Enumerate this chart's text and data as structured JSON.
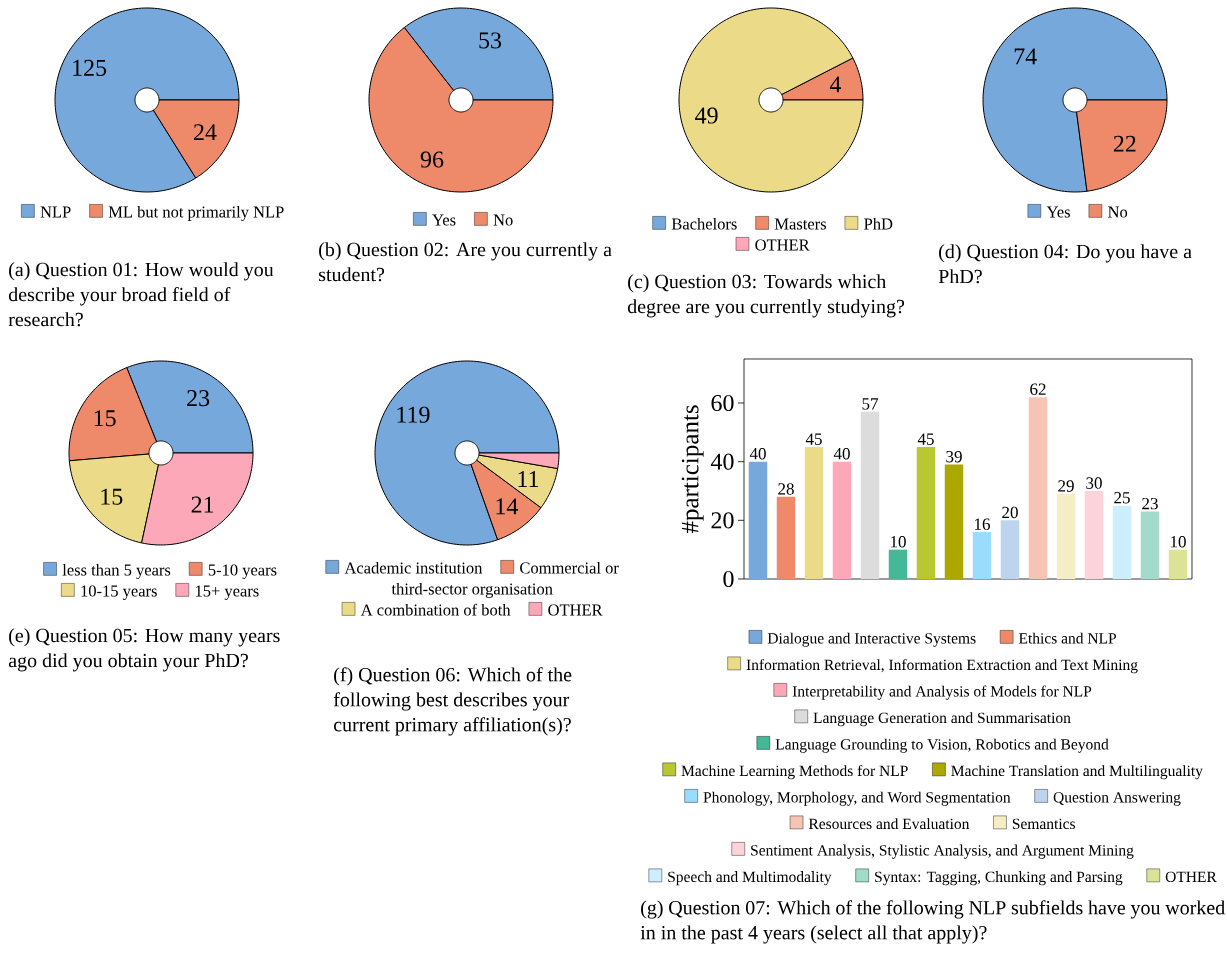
{
  "chart_data": [
    {
      "type": "donut",
      "title": "(a) Question 01: How would you describe your broad field of research?",
      "categories": [
        "NLP",
        "ML but not primarily NLP"
      ],
      "values": [
        125,
        24
      ],
      "colors": [
        "#76a8db",
        "#ee896a"
      ],
      "data_labels": true,
      "legend": "bottom"
    },
    {
      "type": "donut",
      "title": "(b) Question 02: Are you currently a student?",
      "categories": [
        "Yes",
        "No"
      ],
      "values": [
        53,
        96
      ],
      "colors": [
        "#76a8db",
        "#ee896a"
      ],
      "data_labels": true,
      "legend": "bottom"
    },
    {
      "type": "donut",
      "title": "(c) Question 03: Towards which degree are you currently studying?",
      "categories": [
        "Bachelors",
        "Masters",
        "PhD",
        "OTHER"
      ],
      "values": [
        0,
        4,
        49,
        0
      ],
      "colors": [
        "#76a8db",
        "#ee896a",
        "#ebdb88",
        "#fca8b8"
      ],
      "value_labels": [
        null,
        "4",
        "49",
        null
      ],
      "legend": "bottom"
    },
    {
      "type": "donut",
      "title": "(d) Question 04: Do you have a PhD?",
      "categories": [
        "Yes",
        "No"
      ],
      "values": [
        74,
        22
      ],
      "colors": [
        "#76a8db",
        "#ee896a"
      ],
      "data_labels": true,
      "legend": "bottom"
    },
    {
      "type": "donut",
      "title": "(e) Question 05: How many years ago did you obtain your PhD?",
      "categories": [
        "less than 5 years",
        "5-10 years",
        "10-15 years",
        "15+ years"
      ],
      "values": [
        23,
        15,
        15,
        21
      ],
      "colors": [
        "#76a8db",
        "#ee896a",
        "#ebdb88",
        "#fca8b8"
      ],
      "data_labels": true,
      "legend": "bottom"
    },
    {
      "type": "donut",
      "title": "(f) Question 06: Which of the following best describes your current primary affiliation(s)?",
      "categories": [
        "Academic institution",
        "Commercial or third-sector organisation",
        "A combination of both",
        "OTHER"
      ],
      "values": [
        119,
        14,
        11,
        4
      ],
      "colors": [
        "#76a8db",
        "#ee896a",
        "#ebdb88",
        "#fca8b8"
      ],
      "value_labels": [
        "119",
        "14",
        "11",
        null
      ],
      "legend": "bottom"
    },
    {
      "type": "bar",
      "title": "(g) Question 07: Which of the following NLP subfields have you worked in in the past 4 years (select all that apply)?",
      "ylabel": "#participants",
      "categories": [
        null,
        null,
        null,
        null,
        null,
        null,
        null,
        null,
        null,
        null,
        null,
        null,
        null,
        null,
        null,
        null
      ],
      "ylim": [
        0,
        75
      ],
      "yticks": [
        0,
        20,
        40,
        60
      ],
      "tick_labels": "y",
      "data_labels": true,
      "legend": "bottom",
      "stacked": true,
      "series": [
        {
          "name": "Dialogue and Interactive Systems",
          "color": "#76a8db",
          "values": [
            40,
            null,
            null,
            null,
            null,
            null,
            null,
            null,
            null,
            null,
            null,
            null,
            null,
            null,
            null,
            null
          ]
        },
        {
          "name": "Ethics and NLP",
          "color": "#ee896a",
          "values": [
            null,
            28,
            null,
            null,
            null,
            null,
            null,
            null,
            null,
            null,
            null,
            null,
            null,
            null,
            null,
            null
          ]
        },
        {
          "name": "Information Retrieval, Information Extraction and Text Mining",
          "color": "#ebdb88",
          "values": [
            null,
            null,
            45,
            null,
            null,
            null,
            null,
            null,
            null,
            null,
            null,
            null,
            null,
            null,
            null,
            null
          ]
        },
        {
          "name": "Interpretability and Analysis of Models for NLP",
          "color": "#fca8b8",
          "values": [
            null,
            null,
            null,
            40,
            null,
            null,
            null,
            null,
            null,
            null,
            null,
            null,
            null,
            null,
            null,
            null
          ]
        },
        {
          "name": "Language Generation and Summarisation",
          "color": "#dcdcdc",
          "values": [
            null,
            null,
            null,
            null,
            57,
            null,
            null,
            null,
            null,
            null,
            null,
            null,
            null,
            null,
            null,
            null
          ]
        },
        {
          "name": "Language Grounding to Vision, Robotics and Beyond",
          "color": "#44b897",
          "values": [
            null,
            null,
            null,
            null,
            null,
            10,
            null,
            null,
            null,
            null,
            null,
            null,
            null,
            null,
            null,
            null
          ]
        },
        {
          "name": "Machine Learning Methods for NLP",
          "color": "#b9c830",
          "values": [
            null,
            null,
            null,
            null,
            null,
            null,
            45,
            null,
            null,
            null,
            null,
            null,
            null,
            null,
            null,
            null
          ]
        },
        {
          "name": "Machine Translation and Multilinguality",
          "color": "#aba800",
          "values": [
            null,
            null,
            null,
            null,
            null,
            null,
            null,
            39,
            null,
            null,
            null,
            null,
            null,
            null,
            null,
            null
          ]
        },
        {
          "name": "Phonology, Morphology, and Word Segmentation",
          "color": "#99dcfc",
          "values": [
            null,
            null,
            null,
            null,
            null,
            null,
            null,
            null,
            16,
            null,
            null,
            null,
            null,
            null,
            null,
            null
          ]
        },
        {
          "name": "Question Answering",
          "color": "#bcd4ed",
          "values": [
            null,
            null,
            null,
            null,
            null,
            null,
            null,
            null,
            null,
            20,
            null,
            null,
            null,
            null,
            null,
            null
          ]
        },
        {
          "name": "Resources and Evaluation",
          "color": "#f6c4b4",
          "values": [
            null,
            null,
            null,
            null,
            null,
            null,
            null,
            null,
            null,
            null,
            62,
            null,
            null,
            null,
            null,
            null
          ]
        },
        {
          "name": "Semantics",
          "color": "#f5edc3",
          "values": [
            null,
            null,
            null,
            null,
            null,
            null,
            null,
            null,
            null,
            null,
            null,
            29,
            null,
            null,
            null,
            null
          ]
        },
        {
          "name": "Sentiment Analysis, Stylistic Analysis, and Argument Mining",
          "color": "#fdd3db",
          "values": [
            null,
            null,
            null,
            null,
            null,
            null,
            null,
            null,
            null,
            null,
            null,
            null,
            30,
            null,
            null,
            null
          ]
        },
        {
          "name": "Speech and Multimodality",
          "color": "#cceefd",
          "values": [
            null,
            null,
            null,
            null,
            null,
            null,
            null,
            null,
            null,
            null,
            null,
            null,
            null,
            25,
            null,
            null
          ]
        },
        {
          "name": "Syntax: Tagging, Chunking and Parsing",
          "color": "#a1dbcb",
          "values": [
            null,
            null,
            null,
            null,
            null,
            null,
            null,
            null,
            null,
            null,
            null,
            null,
            null,
            null,
            23,
            null
          ]
        },
        {
          "name": "OTHER",
          "color": "#dce397",
          "values": [
            null,
            null,
            null,
            null,
            null,
            null,
            null,
            null,
            null,
            null,
            null,
            null,
            null,
            null,
            null,
            10
          ]
        }
      ]
    }
  ]
}
